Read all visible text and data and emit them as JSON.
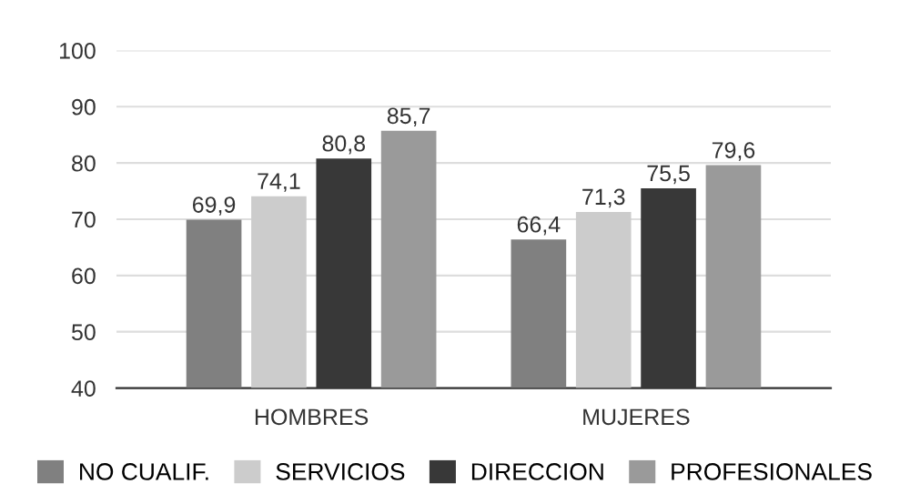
{
  "chart_data": {
    "type": "bar",
    "categories": [
      "HOMBRES",
      "MUJERES"
    ],
    "series": [
      {
        "name": "NO CUALIF.",
        "color": "#808080",
        "values": [
          69.9,
          66.4
        ],
        "value_labels": [
          "69,9",
          "66,4"
        ]
      },
      {
        "name": "SERVICIOS",
        "color": "#cccccc",
        "values": [
          74.1,
          71.3
        ],
        "value_labels": [
          "74,1",
          "71,3"
        ]
      },
      {
        "name": "DIRECCION",
        "color": "#383838",
        "values": [
          80.8,
          75.5
        ],
        "value_labels": [
          "80,8",
          "75,5"
        ]
      },
      {
        "name": "PROFESIONALES",
        "color": "#9a9a9a",
        "values": [
          85.7,
          79.6
        ],
        "value_labels": [
          "85,7",
          "79,6"
        ]
      }
    ],
    "ylim": [
      40,
      100
    ],
    "yticks": [
      40,
      50,
      60,
      70,
      80,
      90,
      100
    ],
    "grid": "y",
    "legend": "bottom"
  }
}
